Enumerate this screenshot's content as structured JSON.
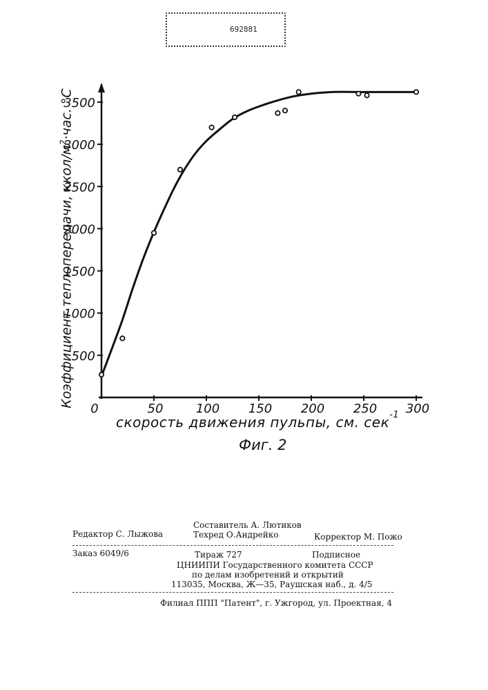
{
  "header": {
    "patent_number": "692881"
  },
  "chart_data": {
    "type": "scatter",
    "ylabel_main": "Коэффициент теплопередачи, ккол/м",
    "ylabel_sup": "2",
    "ylabel_tail": "·час. °С",
    "xlabel_main": "скорость движения пульпы, см. сек",
    "xlabel_sup": "-1",
    "figure_label": "Фиг. 2",
    "xlim": [
      0,
      300
    ],
    "ylim": [
      0,
      3600
    ],
    "x_ticks": [
      0,
      50,
      100,
      150,
      200,
      250,
      300
    ],
    "y_ticks": [
      500,
      1000,
      1500,
      2000,
      2500,
      3000,
      3500
    ],
    "series": [
      {
        "kind": "points",
        "x": [
          0,
          20,
          50,
          75,
          105,
          127,
          168,
          175,
          188,
          245,
          253,
          300
        ],
        "y": [
          270,
          700,
          1950,
          2700,
          3200,
          3320,
          3370,
          3400,
          3620,
          3600,
          3580,
          3620
        ]
      },
      {
        "kind": "curve",
        "x": [
          0,
          10,
          20,
          30,
          40,
          50,
          60,
          70,
          80,
          90,
          100,
          110,
          125,
          140,
          160,
          180,
          200,
          220,
          250,
          300
        ],
        "y": [
          250,
          580,
          920,
          1300,
          1650,
          1960,
          2240,
          2500,
          2720,
          2900,
          3040,
          3150,
          3300,
          3400,
          3490,
          3560,
          3600,
          3620,
          3620,
          3620
        ]
      }
    ]
  },
  "credits": {
    "compiler": "Составитель  А. Лютиков",
    "editor": "Редактор  С. Лыжова",
    "techred": "Техред  О.Андрейко",
    "corrector": "Корректор  М. Пожо",
    "order": "Заказ  6049/6",
    "circulation": "Тираж  727",
    "subscription": "Подписное",
    "org_line1": "ЦНИИПИ Государственного комитета СССР",
    "org_line2": "по делам изобретений и открытий",
    "address": "113035, Москва, Ж—35, Раушская наб., д. 4/5",
    "branch": "Филиал ППП \"Патент\", г. Ужгород, ул. Проектная, 4"
  }
}
